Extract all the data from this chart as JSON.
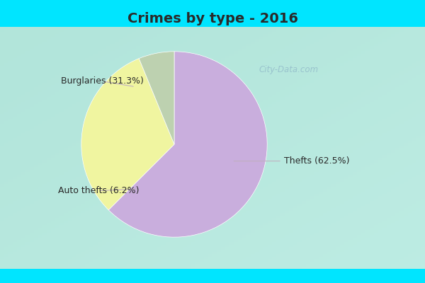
{
  "title": "Crimes by type - 2016",
  "slices": [
    {
      "label": "Thefts (62.5%)",
      "value": 62.5,
      "color": "#c9aedd"
    },
    {
      "label": "Burglaries (31.3%)",
      "value": 31.3,
      "color": "#f0f5a0"
    },
    {
      "label": "Auto thefts (6.2%)",
      "value": 6.2,
      "color": "#bdd1b0"
    }
  ],
  "outer_bg_color": "#00e5ff",
  "inner_bg_color_tl": "#c8ede0",
  "inner_bg_color_br": "#d8f0e8",
  "title_fontsize": 14,
  "title_fontweight": "bold",
  "title_color": "#2a2a2a",
  "watermark": "City-Data.com",
  "label_fontsize": 9,
  "label_color": "#2a2a2a",
  "startangle": 90,
  "annotation_color": "#c0b0c0",
  "annotation_lw": 0.8
}
